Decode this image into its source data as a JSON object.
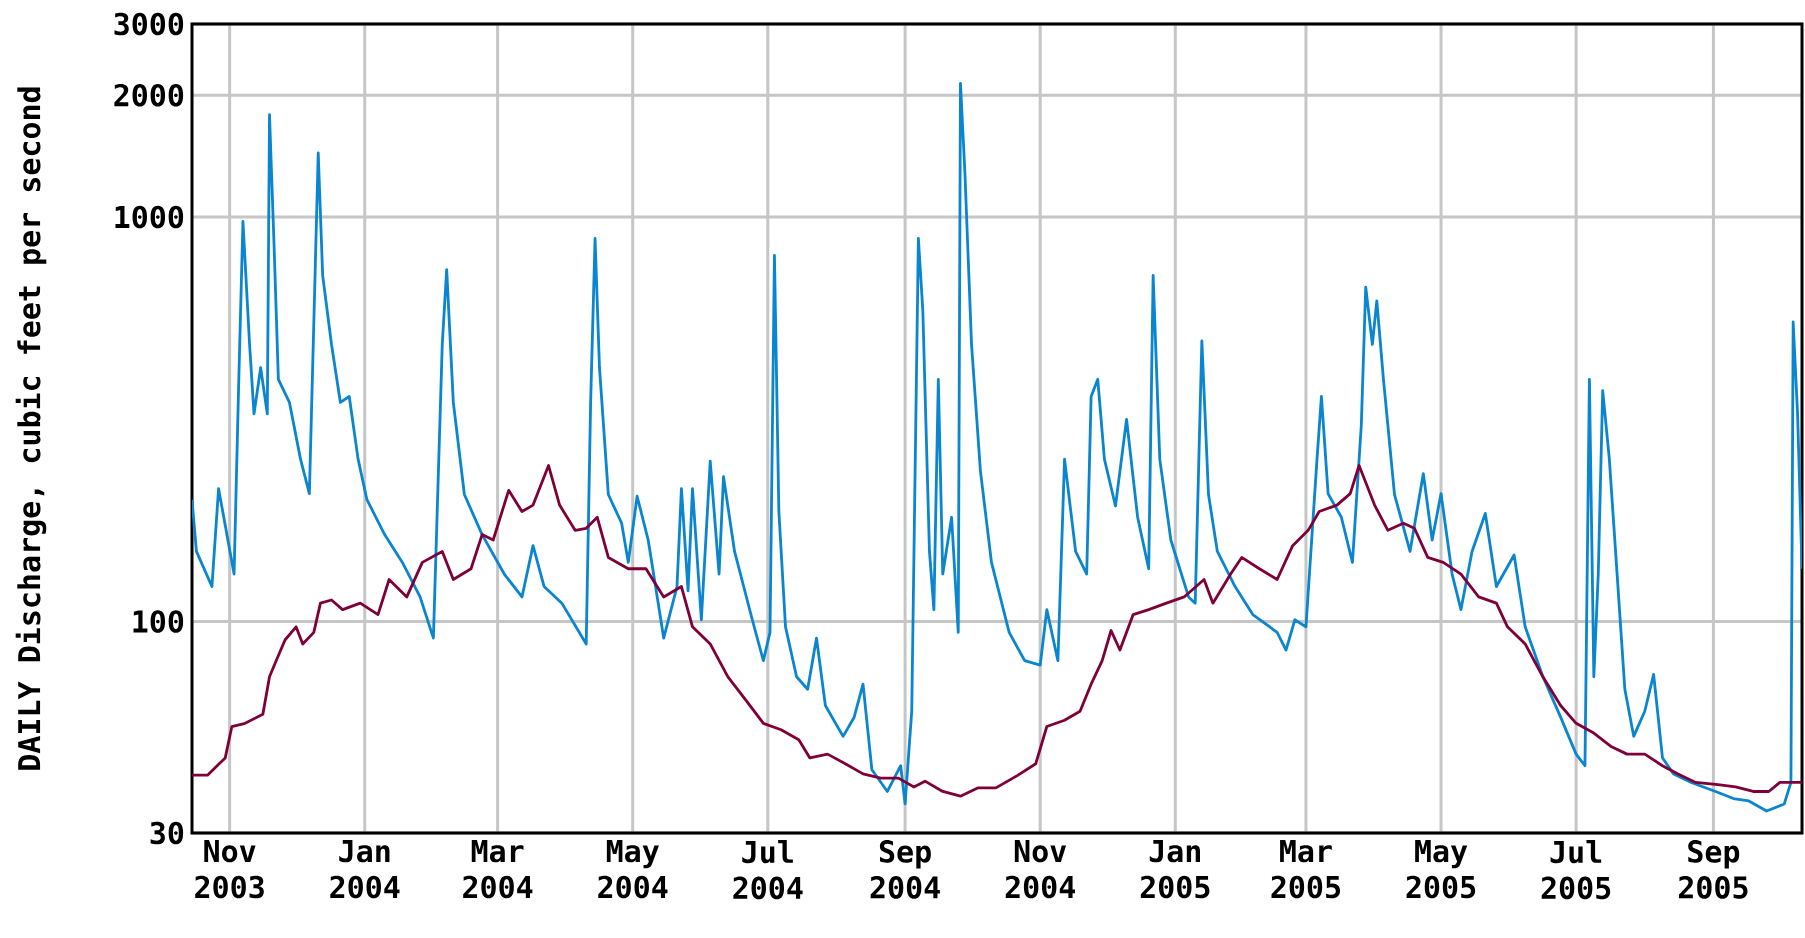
{
  "chart_data": {
    "type": "line",
    "ylabel": "DAILY Discharge, cubic feet per second",
    "log": "y",
    "grid": true,
    "xlim": [
      "2003-10-15",
      "2005-10-11"
    ],
    "xticks": [
      {
        "value": "2003-11-01",
        "label": "Nov 2003"
      },
      {
        "value": "2004-01-01",
        "label": "Jan 2004"
      },
      {
        "value": "2004-03-01",
        "label": "Mar 2004"
      },
      {
        "value": "2004-05-01",
        "label": "May 2004"
      },
      {
        "value": "2004-07-01",
        "label": "Jul 2004"
      },
      {
        "value": "2004-09-01",
        "label": "Sep 2004"
      },
      {
        "value": "2004-11-01",
        "label": "Nov 2004"
      },
      {
        "value": "2005-01-01",
        "label": "Jan 2005"
      },
      {
        "value": "2005-03-01",
        "label": "Mar 2005"
      },
      {
        "value": "2005-05-01",
        "label": "May 2005"
      },
      {
        "value": "2005-07-01",
        "label": "Jul 2005"
      },
      {
        "value": "2005-09-01",
        "label": "Sep 2005"
      }
    ],
    "ylim": [
      30,
      3000
    ],
    "yticks": [
      30,
      100,
      1000,
      2000,
      3000
    ],
    "series": [
      {
        "color": "#0a85cf",
        "x": [
          "2003-10-15",
          "2003-10-17",
          "2003-10-24",
          "2003-10-27",
          "2003-11-03",
          "2003-11-05",
          "2003-11-07",
          "2003-11-10",
          "2003-11-12",
          "2003-11-15",
          "2003-11-18",
          "2003-11-19",
          "2003-11-21",
          "2003-11-23",
          "2003-11-28",
          "2003-12-03",
          "2003-12-07",
          "2003-12-11",
          "2003-12-13",
          "2003-12-17",
          "2003-12-21",
          "2003-12-25",
          "2003-12-29",
          "2004-01-02",
          "2004-01-10",
          "2004-01-18",
          "2004-01-26",
          "2004-02-01",
          "2004-02-05",
          "2004-02-07",
          "2004-02-10",
          "2004-02-15",
          "2004-02-23",
          "2004-03-04",
          "2004-03-12",
          "2004-03-17",
          "2004-03-22",
          "2004-03-30",
          "2004-04-10",
          "2004-04-12",
          "2004-04-14",
          "2004-04-16",
          "2004-04-20",
          "2004-04-26",
          "2004-04-29",
          "2004-05-03",
          "2004-05-08",
          "2004-05-15",
          "2004-05-21",
          "2004-05-23",
          "2004-05-26",
          "2004-05-28",
          "2004-06-01",
          "2004-06-05",
          "2004-06-09",
          "2004-06-11",
          "2004-06-16",
          "2004-06-24",
          "2004-06-29",
          "2004-07-02",
          "2004-07-04",
          "2004-07-06",
          "2004-07-09",
          "2004-07-14",
          "2004-07-19",
          "2004-07-23",
          "2004-07-27",
          "2004-08-04",
          "2004-08-09",
          "2004-08-13",
          "2004-08-17",
          "2004-08-24",
          "2004-08-30",
          "2004-09-01",
          "2004-09-04",
          "2004-09-07",
          "2004-09-09",
          "2004-09-12",
          "2004-09-14",
          "2004-09-16",
          "2004-09-18",
          "2004-09-22",
          "2004-09-25",
          "2004-09-26",
          "2004-09-28",
          "2004-10-01",
          "2004-10-05",
          "2004-10-10",
          "2004-10-18",
          "2004-10-25",
          "2004-11-01",
          "2004-11-04",
          "2004-11-09",
          "2004-11-12",
          "2004-11-17",
          "2004-11-22",
          "2004-11-24",
          "2004-11-27",
          "2004-11-30",
          "2004-12-05",
          "2004-12-10",
          "2004-12-15",
          "2004-12-20",
          "2004-12-22",
          "2004-12-25",
          "2004-12-30",
          "2005-01-07",
          "2005-01-10",
          "2005-01-13",
          "2005-01-16",
          "2005-01-20",
          "2005-01-28",
          "2005-02-05",
          "2005-02-16",
          "2005-02-20",
          "2005-02-24",
          "2005-03-01",
          "2005-03-06",
          "2005-03-08",
          "2005-03-11",
          "2005-03-17",
          "2005-03-22",
          "2005-03-26",
          "2005-03-28",
          "2005-03-31",
          "2005-04-02",
          "2005-04-05",
          "2005-04-10",
          "2005-04-17",
          "2005-04-23",
          "2005-04-27",
          "2005-05-01",
          "2005-05-06",
          "2005-05-10",
          "2005-05-15",
          "2005-05-21",
          "2005-05-26",
          "2005-06-03",
          "2005-06-08",
          "2005-06-16",
          "2005-06-24",
          "2005-07-01",
          "2005-07-05",
          "2005-07-07",
          "2005-07-09",
          "2005-07-11",
          "2005-07-13",
          "2005-07-16",
          "2005-07-19",
          "2005-07-23",
          "2005-07-27",
          "2005-08-01",
          "2005-08-05",
          "2005-08-09",
          "2005-08-14",
          "2005-08-22",
          "2005-09-02",
          "2005-09-10",
          "2005-09-17",
          "2005-09-25",
          "2005-10-03",
          "2005-10-06",
          "2005-10-07",
          "2005-10-09",
          "2005-10-11"
        ],
        "values": [
          200,
          149,
          122,
          213,
          131,
          372,
          975,
          484,
          326,
          424,
          326,
          1790,
          870,
          397,
          348,
          252,
          207,
          1440,
          717,
          484,
          348,
          360,
          252,
          200,
          164,
          140,
          115,
          91,
          484,
          741,
          348,
          206,
          164,
          131,
          115,
          154,
          122,
          111,
          88,
          348,
          885,
          424,
          206,
          175,
          140,
          204,
          159,
          91,
          122,
          213,
          119,
          213,
          101,
          249,
          131,
          228,
          149,
          101,
          80,
          94,
          804,
          187,
          97,
          73,
          68,
          91,
          62,
          52,
          58,
          70,
          43,
          38,
          44,
          35.4,
          60,
          885,
          588,
          149,
          107,
          397,
          131,
          181,
          94,
          2140,
          1290,
          484,
          236,
          140,
          94,
          80,
          78,
          107,
          80,
          252,
          149,
          131,
          360,
          397,
          252,
          193,
          316,
          181,
          135,
          717,
          252,
          159,
          115,
          111,
          494,
          206,
          149,
          122,
          104,
          94,
          85,
          101,
          97,
          252,
          360,
          207,
          181,
          140,
          306,
          671,
          484,
          620,
          397,
          206,
          149,
          232,
          159,
          207,
          131,
          107,
          149,
          185,
          122,
          146,
          97,
          73,
          58,
          47,
          44,
          397,
          73,
          131,
          372,
          252,
          144,
          68,
          52,
          60,
          74,
          46,
          42,
          40,
          38,
          36.5,
          36,
          34,
          35.4,
          40,
          550,
          326,
          135
        ]
      },
      {
        "color": "#7f0038",
        "x": [
          "2003-10-15",
          "2003-10-22",
          "2003-10-30",
          "2003-11-02",
          "2003-11-08",
          "2003-11-16",
          "2003-11-19",
          "2003-11-22",
          "2003-11-26",
          "2003-12-01",
          "2003-12-04",
          "2003-12-09",
          "2003-12-12",
          "2003-12-17",
          "2003-12-22",
          "2003-12-30",
          "2004-01-07",
          "2004-01-12",
          "2004-01-20",
          "2004-01-27",
          "2004-02-05",
          "2004-02-10",
          "2004-02-18",
          "2004-02-23",
          "2004-02-28",
          "2004-03-06",
          "2004-03-12",
          "2004-03-17",
          "2004-03-24",
          "2004-03-29",
          "2004-04-05",
          "2004-04-10",
          "2004-04-15",
          "2004-04-20",
          "2004-04-29",
          "2004-05-07",
          "2004-05-15",
          "2004-05-23",
          "2004-05-28",
          "2004-06-05",
          "2004-06-13",
          "2004-06-21",
          "2004-06-29",
          "2004-07-07",
          "2004-07-15",
          "2004-07-20",
          "2004-07-28",
          "2004-08-05",
          "2004-08-13",
          "2004-08-21",
          "2004-08-29",
          "2004-09-05",
          "2004-09-10",
          "2004-09-18",
          "2004-09-26",
          "2004-10-04",
          "2004-10-12",
          "2004-10-22",
          "2004-10-30",
          "2004-11-04",
          "2004-11-12",
          "2004-11-19",
          "2004-11-24",
          "2004-11-29",
          "2004-12-03",
          "2004-12-07",
          "2004-12-13",
          "2004-12-20",
          "2004-12-28",
          "2005-01-05",
          "2005-01-14",
          "2005-01-18",
          "2005-01-26",
          "2005-01-31",
          "2005-02-08",
          "2005-02-16",
          "2005-02-23",
          "2005-03-02",
          "2005-03-07",
          "2005-03-15",
          "2005-03-21",
          "2005-03-25",
          "2005-04-01",
          "2005-04-07",
          "2005-04-14",
          "2005-04-19",
          "2005-04-25",
          "2005-05-02",
          "2005-05-10",
          "2005-05-18",
          "2005-05-26",
          "2005-05-31",
          "2005-06-08",
          "2005-06-16",
          "2005-06-24",
          "2005-07-01",
          "2005-07-09",
          "2005-07-17",
          "2005-07-24",
          "2005-08-01",
          "2005-08-09",
          "2005-08-16",
          "2005-08-24",
          "2005-09-03",
          "2005-09-11",
          "2005-09-19",
          "2005-09-26",
          "2005-10-01",
          "2005-10-11"
        ],
        "values": [
          41.7,
          41.7,
          46,
          55,
          56,
          59,
          73,
          80,
          90,
          97,
          88,
          94,
          111,
          113,
          107,
          111,
          104,
          127,
          115,
          140,
          149,
          127,
          135,
          164,
          159,
          211,
          187,
          194,
          243,
          194,
          168,
          170,
          181,
          144,
          135,
          135,
          115,
          122,
          97,
          88,
          73,
          64,
          56,
          54,
          51,
          46,
          47,
          44.5,
          42,
          41,
          41,
          39,
          40.3,
          38,
          37,
          38.8,
          38.8,
          41.7,
          44.5,
          55,
          57,
          60,
          70,
          80,
          95,
          85,
          104,
          107,
          111,
          115,
          127,
          111,
          131,
          144,
          135,
          127,
          154,
          168,
          187,
          194,
          207,
          243,
          194,
          168,
          175,
          170,
          144,
          140,
          131,
          115,
          111,
          97,
          88,
          73,
          62,
          56,
          53,
          49,
          47,
          47,
          44,
          42,
          40,
          39.5,
          39,
          38,
          38,
          40,
          40
        ]
      }
    ]
  }
}
